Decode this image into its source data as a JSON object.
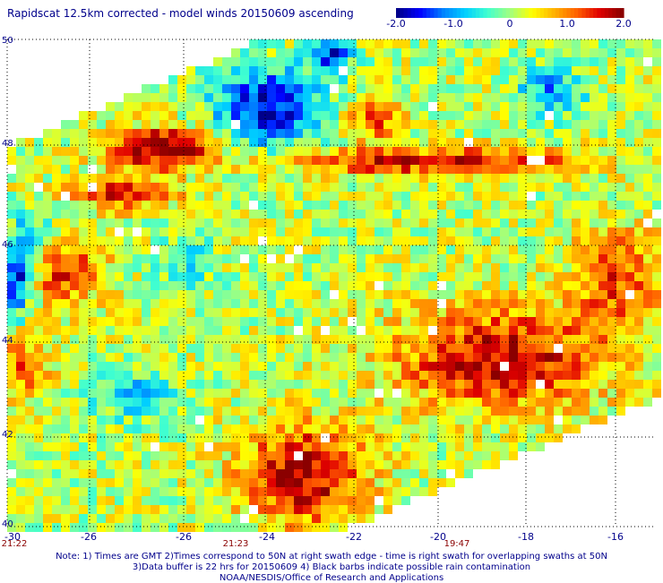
{
  "header": {
    "title": "Rapidscat 12.5km corrected - model winds 20150609 ascending"
  },
  "colorbar": {
    "min": -2.0,
    "max": 2.0,
    "labels": [
      "-2.0",
      "-1.0",
      "0",
      "1.0",
      "2.0"
    ],
    "colors": [
      "#00008b",
      "#0000ff",
      "#0080ff",
      "#00d0ff",
      "#40ffd0",
      "#a0ff80",
      "#ffff00",
      "#ffb000",
      "#ff6000",
      "#e00000",
      "#8b0000"
    ]
  },
  "map": {
    "lat_labels": [
      "50",
      "48",
      "46",
      "44",
      "42",
      "40"
    ],
    "lon_labels": [
      "-30",
      "-26",
      "-26",
      "-24",
      "-22",
      "-20",
      "-18",
      "-16"
    ],
    "time_labels": [
      "21:22",
      "21:23",
      "19:47"
    ],
    "gridline_color": "#000000"
  },
  "footer": {
    "note1": "Note: 1) Times are GMT 2)Times correspond to 50N at right swath edge - time is right swath for overlapping swaths at 50N",
    "note2": "3)Data buffer is 22 hrs for 20150609 4) Black barbs indicate possible rain contamination",
    "credit": "NOAA/NESDIS/Office of Research and Applications"
  }
}
